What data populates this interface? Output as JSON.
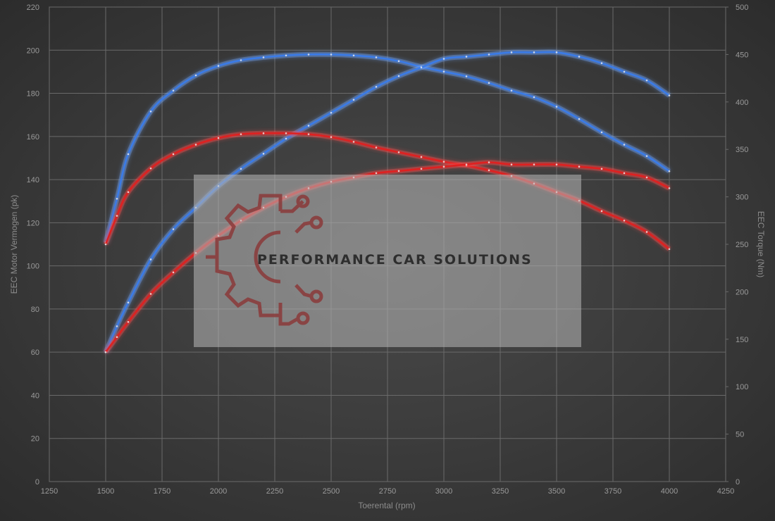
{
  "chart_data": {
    "type": "line",
    "xlabel": "Toerental (rpm)",
    "ylabel_left": "EEC Motor Vermogen (pk)",
    "ylabel_right": "EEC Torque (Nm)",
    "xlim": [
      1250,
      4250
    ],
    "ylim_left": [
      0,
      220
    ],
    "ylim_right": [
      0,
      500
    ],
    "x_ticks": [
      1250,
      1500,
      1750,
      2000,
      2250,
      2500,
      2750,
      3000,
      3250,
      3500,
      3750,
      4000,
      4250
    ],
    "y_ticks_left": [
      0,
      20,
      40,
      60,
      80,
      100,
      120,
      140,
      160,
      180,
      200,
      220
    ],
    "y_ticks_right": [
      0,
      50,
      100,
      150,
      200,
      250,
      300,
      350,
      400,
      450,
      500
    ],
    "grid": true,
    "series": [
      {
        "axis": "right",
        "color": "#3a7be8",
        "glow": "#6fa6ff",
        "x": [
          1500,
          1550,
          1600,
          1700,
          1800,
          1900,
          2000,
          2100,
          2200,
          2300,
          2400,
          2500,
          2600,
          2700,
          2800,
          2900,
          3000,
          3100,
          3200,
          3300,
          3400,
          3500,
          3600,
          3700,
          3800,
          3900,
          4000
        ],
        "y": [
          252,
          298,
          345,
          390,
          412,
          428,
          438,
          444,
          447,
          449,
          450,
          450,
          449,
          447,
          443,
          437,
          432,
          427,
          420,
          412,
          405,
          395,
          382,
          368,
          355,
          343,
          327
        ]
      },
      {
        "axis": "left",
        "color": "#3a7be8",
        "glow": "#6fa6ff",
        "x": [
          1500,
          1550,
          1600,
          1700,
          1800,
          1900,
          2000,
          2100,
          2200,
          2300,
          2400,
          2500,
          2600,
          2700,
          2800,
          2900,
          3000,
          3100,
          3200,
          3300,
          3400,
          3500,
          3600,
          3700,
          3800,
          3900,
          4000
        ],
        "y": [
          60,
          72,
          83,
          103,
          117,
          127,
          137,
          145,
          152,
          159,
          165,
          171,
          177,
          183,
          188,
          192,
          196,
          197,
          198,
          199,
          199,
          199,
          197,
          194,
          190,
          186,
          179
        ]
      },
      {
        "axis": "right",
        "color": "#e02020",
        "glow": "#ff4a4a",
        "x": [
          1500,
          1550,
          1600,
          1700,
          1800,
          1900,
          2000,
          2100,
          2200,
          2300,
          2400,
          2500,
          2600,
          2700,
          2800,
          2900,
          3000,
          3100,
          3200,
          3300,
          3400,
          3500,
          3600,
          3700,
          3800,
          3900,
          4000
        ],
        "y": [
          250,
          280,
          305,
          330,
          345,
          355,
          362,
          366,
          367,
          367,
          366,
          363,
          358,
          352,
          347,
          342,
          337,
          333,
          328,
          322,
          314,
          305,
          296,
          285,
          275,
          263,
          245
        ]
      },
      {
        "axis": "left",
        "color": "#e02020",
        "glow": "#ff4a4a",
        "x": [
          1500,
          1550,
          1600,
          1700,
          1800,
          1900,
          2000,
          2100,
          2200,
          2300,
          2400,
          2500,
          2600,
          2700,
          2800,
          2900,
          3000,
          3100,
          3200,
          3300,
          3400,
          3500,
          3600,
          3700,
          3800,
          3900,
          4000
        ],
        "y": [
          60,
          67,
          74,
          87,
          97,
          106,
          114,
          121,
          127,
          132,
          136,
          139,
          141,
          143,
          144,
          145,
          146,
          147,
          148,
          147,
          147,
          147,
          146,
          145,
          143,
          141,
          136
        ]
      }
    ]
  },
  "watermark": {
    "text": "PERFORMANCE CAR SOLUTIONS",
    "logo": "gear-circuit-logo"
  }
}
